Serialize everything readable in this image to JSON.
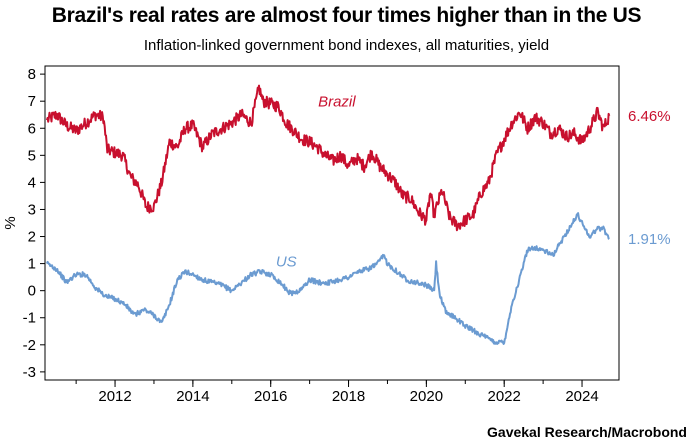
{
  "title": "Brazil's real rates are almost four times higher than in the US",
  "subtitle": "Inflation-linked government bond indexes, all maturities, yield",
  "source": "Gavekal Research/Macrobond",
  "colors": {
    "brazil": "#c8102e",
    "us": "#6b9bd1",
    "axis": "#000000",
    "grid": "#cccccc"
  },
  "chart_data": {
    "type": "line",
    "title": "Brazil's real rates are almost four times higher than in the US",
    "subtitle": "Inflation-linked government bond indexes, all maturities, yield",
    "xlabel": "",
    "ylabel": "%",
    "xlim": [
      2010.2,
      2024.95
    ],
    "ylim": [
      -3.3,
      8.3
    ],
    "grid": false,
    "x_ticks": [
      "2012",
      "2014",
      "2016",
      "2018",
      "2020",
      "2022",
      "2024"
    ],
    "y_ticks": [
      "8",
      "7",
      "6",
      "5",
      "4",
      "3",
      "2",
      "1",
      "0",
      "-1",
      "-2",
      "-3"
    ],
    "series": [
      {
        "name": "Brazil",
        "color": "#c8102e",
        "last_value_label": "6.46%",
        "points": [
          [
            2010.25,
            6.3
          ],
          [
            2010.5,
            6.5
          ],
          [
            2010.75,
            6.1
          ],
          [
            2011.0,
            5.9
          ],
          [
            2011.25,
            6.2
          ],
          [
            2011.5,
            6.5
          ],
          [
            2011.7,
            6.4
          ],
          [
            2011.8,
            5.2
          ],
          [
            2012.0,
            5.1
          ],
          [
            2012.2,
            5.0
          ],
          [
            2012.4,
            4.2
          ],
          [
            2012.6,
            3.9
          ],
          [
            2012.8,
            3.1
          ],
          [
            2013.0,
            3.1
          ],
          [
            2013.2,
            4.0
          ],
          [
            2013.4,
            5.5
          ],
          [
            2013.6,
            5.3
          ],
          [
            2013.8,
            6.0
          ],
          [
            2014.0,
            6.1
          ],
          [
            2014.25,
            5.3
          ],
          [
            2014.5,
            5.8
          ],
          [
            2014.75,
            6.0
          ],
          [
            2015.0,
            6.2
          ],
          [
            2015.25,
            6.5
          ],
          [
            2015.5,
            6.2
          ],
          [
            2015.7,
            7.5
          ],
          [
            2015.8,
            7.0
          ],
          [
            2016.0,
            6.9
          ],
          [
            2016.2,
            6.8
          ],
          [
            2016.4,
            6.2
          ],
          [
            2016.6,
            5.9
          ],
          [
            2016.8,
            5.6
          ],
          [
            2017.0,
            5.5
          ],
          [
            2017.2,
            5.3
          ],
          [
            2017.4,
            5.0
          ],
          [
            2017.6,
            4.8
          ],
          [
            2017.8,
            5.0
          ],
          [
            2018.0,
            4.6
          ],
          [
            2018.2,
            4.9
          ],
          [
            2018.4,
            4.6
          ],
          [
            2018.6,
            5.1
          ],
          [
            2018.8,
            4.6
          ],
          [
            2019.0,
            4.3
          ],
          [
            2019.2,
            4.0
          ],
          [
            2019.4,
            3.5
          ],
          [
            2019.6,
            3.4
          ],
          [
            2019.8,
            2.9
          ],
          [
            2020.0,
            2.6
          ],
          [
            2020.1,
            3.6
          ],
          [
            2020.2,
            2.8
          ],
          [
            2020.4,
            3.7
          ],
          [
            2020.6,
            2.7
          ],
          [
            2020.8,
            2.4
          ],
          [
            2021.0,
            2.6
          ],
          [
            2021.2,
            2.8
          ],
          [
            2021.4,
            3.6
          ],
          [
            2021.6,
            4.0
          ],
          [
            2021.8,
            5.0
          ],
          [
            2022.0,
            5.6
          ],
          [
            2022.2,
            6.2
          ],
          [
            2022.4,
            6.6
          ],
          [
            2022.6,
            6.0
          ],
          [
            2022.8,
            6.4
          ],
          [
            2023.0,
            6.2
          ],
          [
            2023.2,
            5.8
          ],
          [
            2023.4,
            6.0
          ],
          [
            2023.6,
            5.7
          ],
          [
            2023.8,
            5.8
          ],
          [
            2024.0,
            5.5
          ],
          [
            2024.2,
            6.0
          ],
          [
            2024.4,
            6.6
          ],
          [
            2024.55,
            6.0
          ],
          [
            2024.7,
            6.46
          ]
        ]
      },
      {
        "name": "US",
        "color": "#6b9bd1",
        "last_value_label": "1.91%",
        "points": [
          [
            2010.25,
            1.0
          ],
          [
            2010.5,
            0.8
          ],
          [
            2010.75,
            0.3
          ],
          [
            2011.0,
            0.6
          ],
          [
            2011.25,
            0.6
          ],
          [
            2011.5,
            0.1
          ],
          [
            2011.75,
            -0.2
          ],
          [
            2012.0,
            -0.3
          ],
          [
            2012.25,
            -0.5
          ],
          [
            2012.5,
            -0.9
          ],
          [
            2012.75,
            -0.7
          ],
          [
            2013.0,
            -0.9
          ],
          [
            2013.2,
            -1.2
          ],
          [
            2013.4,
            -0.5
          ],
          [
            2013.6,
            0.4
          ],
          [
            2013.8,
            0.7
          ],
          [
            2014.0,
            0.6
          ],
          [
            2014.25,
            0.4
          ],
          [
            2014.5,
            0.3
          ],
          [
            2014.75,
            0.2
          ],
          [
            2015.0,
            0.0
          ],
          [
            2015.25,
            0.3
          ],
          [
            2015.5,
            0.6
          ],
          [
            2015.75,
            0.7
          ],
          [
            2016.0,
            0.6
          ],
          [
            2016.25,
            0.3
          ],
          [
            2016.5,
            -0.1
          ],
          [
            2016.75,
            0.0
          ],
          [
            2017.0,
            0.4
          ],
          [
            2017.25,
            0.3
          ],
          [
            2017.5,
            0.3
          ],
          [
            2017.75,
            0.4
          ],
          [
            2018.0,
            0.5
          ],
          [
            2018.25,
            0.7
          ],
          [
            2018.5,
            0.8
          ],
          [
            2018.75,
            1.0
          ],
          [
            2018.9,
            1.3
          ],
          [
            2019.0,
            1.0
          ],
          [
            2019.25,
            0.7
          ],
          [
            2019.5,
            0.4
          ],
          [
            2019.75,
            0.3
          ],
          [
            2020.0,
            0.2
          ],
          [
            2020.2,
            0.0
          ],
          [
            2020.25,
            1.0
          ],
          [
            2020.35,
            -0.2
          ],
          [
            2020.5,
            -0.8
          ],
          [
            2020.75,
            -1.0
          ],
          [
            2021.0,
            -1.3
          ],
          [
            2021.25,
            -1.5
          ],
          [
            2021.5,
            -1.7
          ],
          [
            2021.75,
            -1.9
          ],
          [
            2022.0,
            -1.9
          ],
          [
            2022.1,
            -1.2
          ],
          [
            2022.2,
            -0.5
          ],
          [
            2022.35,
            0.2
          ],
          [
            2022.5,
            1.0
          ],
          [
            2022.6,
            1.5
          ],
          [
            2022.75,
            1.6
          ],
          [
            2023.0,
            1.5
          ],
          [
            2023.25,
            1.3
          ],
          [
            2023.5,
            1.9
          ],
          [
            2023.75,
            2.5
          ],
          [
            2023.9,
            2.8
          ],
          [
            2024.0,
            2.5
          ],
          [
            2024.2,
            2.0
          ],
          [
            2024.4,
            2.3
          ],
          [
            2024.55,
            2.3
          ],
          [
            2024.7,
            1.91
          ]
        ]
      }
    ],
    "annotations": [
      {
        "text": "Brazil",
        "x": 2017.7,
        "y": 6.8,
        "series": "Brazil"
      },
      {
        "text": "US",
        "x": 2016.4,
        "y": 0.9,
        "series": "US"
      }
    ]
  }
}
